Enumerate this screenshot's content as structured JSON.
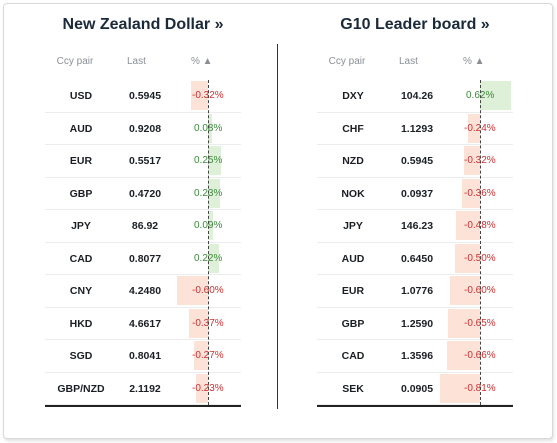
{
  "nzd": {
    "title": "New Zealand Dollar »",
    "headers": {
      "pair": "Ccy pair",
      "last": "Last",
      "pct": "% ▲"
    },
    "rows": [
      {
        "pair": "USD",
        "last": "0.5945",
        "pct": "-0.32%",
        "value": -0.32
      },
      {
        "pair": "AUD",
        "last": "0.9208",
        "pct": "0.08%",
        "value": 0.08
      },
      {
        "pair": "EUR",
        "last": "0.5517",
        "pct": "0.25%",
        "value": 0.25
      },
      {
        "pair": "GBP",
        "last": "0.4720",
        "pct": "0.23%",
        "value": 0.23
      },
      {
        "pair": "JPY",
        "last": "86.92",
        "pct": "0.09%",
        "value": 0.09
      },
      {
        "pair": "CAD",
        "last": "0.8077",
        "pct": "0.22%",
        "value": 0.22
      },
      {
        "pair": "CNY",
        "last": "4.2480",
        "pct": "-0.60%",
        "value": -0.6
      },
      {
        "pair": "HKD",
        "last": "4.6617",
        "pct": "-0.37%",
        "value": -0.37
      },
      {
        "pair": "SGD",
        "last": "0.8041",
        "pct": "-0.27%",
        "value": -0.27
      },
      {
        "pair": "GBP/NZD",
        "last": "2.1192",
        "pct": "-0.23%",
        "value": -0.23
      }
    ]
  },
  "g10": {
    "title": "G10 Leader board »",
    "headers": {
      "pair": "Ccy pair",
      "last": "Last",
      "pct": "% ▲"
    },
    "rows": [
      {
        "pair": "DXY",
        "last": "104.26",
        "pct": "0.62%",
        "value": 0.62
      },
      {
        "pair": "CHF",
        "last": "1.1293",
        "pct": "-0.24%",
        "value": -0.24
      },
      {
        "pair": "NZD",
        "last": "0.5945",
        "pct": "-0.32%",
        "value": -0.32
      },
      {
        "pair": "NOK",
        "last": "0.0937",
        "pct": "-0.36%",
        "value": -0.36
      },
      {
        "pair": "JPY",
        "last": "146.23",
        "pct": "-0.48%",
        "value": -0.48
      },
      {
        "pair": "AUD",
        "last": "0.6450",
        "pct": "-0.50%",
        "value": -0.5
      },
      {
        "pair": "EUR",
        "last": "1.0776",
        "pct": "-0.60%",
        "value": -0.6
      },
      {
        "pair": "GBP",
        "last": "1.2590",
        "pct": "-0.65%",
        "value": -0.65
      },
      {
        "pair": "CAD",
        "last": "1.3596",
        "pct": "-0.66%",
        "value": -0.66
      },
      {
        "pair": "SEK",
        "last": "0.0905",
        "pct": "-0.81%",
        "value": -0.81
      }
    ]
  },
  "colors": {
    "positive_bar": "#dff0d8",
    "negative_bar": "#fde2d8",
    "positive_text": "#3c8a3c",
    "negative_text": "#d03030"
  }
}
